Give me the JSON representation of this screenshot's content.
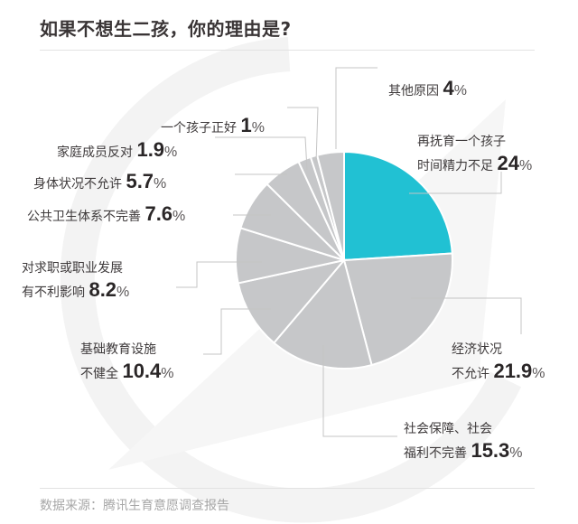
{
  "title": "如果不想生二孩，你的理由是?",
  "source": "数据来源：腾讯生育意愿调查报告",
  "colors": {
    "highlight": "#21C1D3",
    "slice": "#C6C7C9",
    "separator": "#ffffff",
    "leader": "#c4c4c4",
    "text": "#3a3536"
  },
  "labels": [
    {
      "line1": "再抚育一个孩子",
      "line2": "时间精力不足",
      "value": "24",
      "sign": "%"
    },
    {
      "line1": "经济状况",
      "line2": "不允许",
      "value": "21.9",
      "sign": "%"
    },
    {
      "line1": "社会保障、社会",
      "line2": "福利不完善",
      "value": "15.3",
      "sign": "%"
    },
    {
      "line1": "基础教育设施",
      "line2": "不健全",
      "value": "10.4",
      "sign": "%"
    },
    {
      "line1": "对求职或职业发展",
      "line2": "有不利影响",
      "value": "8.2",
      "sign": "%"
    },
    {
      "line1": "",
      "line2": "公共卫生体系不完善",
      "value": "7.6",
      "sign": "%"
    },
    {
      "line1": "",
      "line2": "身体状况不允许",
      "value": "5.7",
      "sign": "%"
    },
    {
      "line1": "",
      "line2": "家庭成员反对",
      "value": "1.9",
      "sign": "%"
    },
    {
      "line1": "",
      "line2": "一个孩子正好",
      "value": "1",
      "sign": "%"
    },
    {
      "line1": "",
      "line2": "其他原因",
      "value": "4",
      "sign": "%"
    }
  ],
  "chart_data": {
    "type": "pie",
    "title": "如果不想生二孩，你的理由是?",
    "start_angle": "12 o'clock, clockwise",
    "categories": [
      "再抚育一个孩子时间精力不足",
      "经济状况不允许",
      "社会保障、社会福利不完善",
      "基础教育设施不健全",
      "对求职或职业发展有不利影响",
      "公共卫生体系不完善",
      "身体状况不允许",
      "家庭成员反对",
      "一个孩子正好",
      "其他原因"
    ],
    "values": [
      24,
      21.9,
      15.3,
      10.4,
      8.2,
      7.6,
      5.7,
      1.9,
      1,
      4
    ],
    "unit": "%",
    "highlighted": "再抚育一个孩子时间精力不足",
    "colors": [
      "#21C1D3",
      "#C6C7C9",
      "#C6C7C9",
      "#C6C7C9",
      "#C6C7C9",
      "#C6C7C9",
      "#C6C7C9",
      "#C6C7C9",
      "#C6C7C9",
      "#C6C7C9"
    ],
    "legend": "none (direct labels with leader lines)",
    "source": "数据来源：腾讯生育意愿调查报告"
  }
}
